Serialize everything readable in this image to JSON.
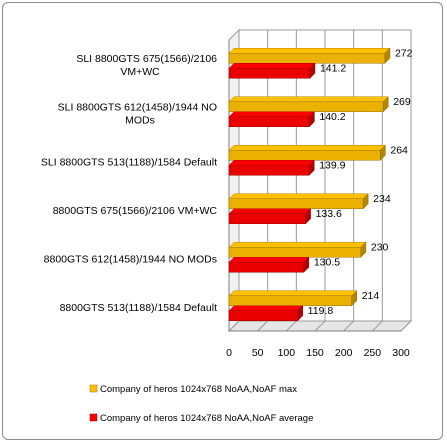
{
  "chart_data": {
    "type": "bar",
    "orientation": "horizontal",
    "style": "3d",
    "categories": [
      [
        "SLI 8800GTS 675(1566)/2106",
        "VM+WC"
      ],
      [
        "SLI 8800GTS 612(1458)/1944 NO",
        "MODs"
      ],
      [
        "SLI 8800GTS 513(1188)/1584 Default"
      ],
      [
        "8800GTS 675(1566)/2106 VM+WC"
      ],
      [
        "8800GTS 612(1458)/1944 NO MODs"
      ],
      [
        "8800GTS 513(1188)/1584 Default"
      ]
    ],
    "series": [
      {
        "name": "Company of heros 1024x768 NoAA,NoAF max",
        "color": "#FFC000",
        "values": [
          272,
          269,
          264,
          234,
          230,
          214
        ],
        "value_labels": [
          "272",
          "269",
          "264",
          "234",
          "230",
          "214"
        ]
      },
      {
        "name": "Company of heros 1024x768 NoAA,NoAF average",
        "color": "#FF0000",
        "values": [
          141.2,
          140.2,
          139.9,
          133.6,
          130.5,
          119.8
        ],
        "value_labels": [
          "141.2",
          "140.2",
          "139.9",
          "133.6",
          "130.5",
          "119.8"
        ]
      }
    ],
    "xlim": [
      0,
      300
    ],
    "xticks": [
      0,
      50,
      100,
      150,
      200,
      250,
      300
    ],
    "xtick_labels": [
      "0",
      "50",
      "100",
      "150",
      "200",
      "250",
      "300"
    ],
    "grid": "vertical",
    "legend": "bottom"
  }
}
